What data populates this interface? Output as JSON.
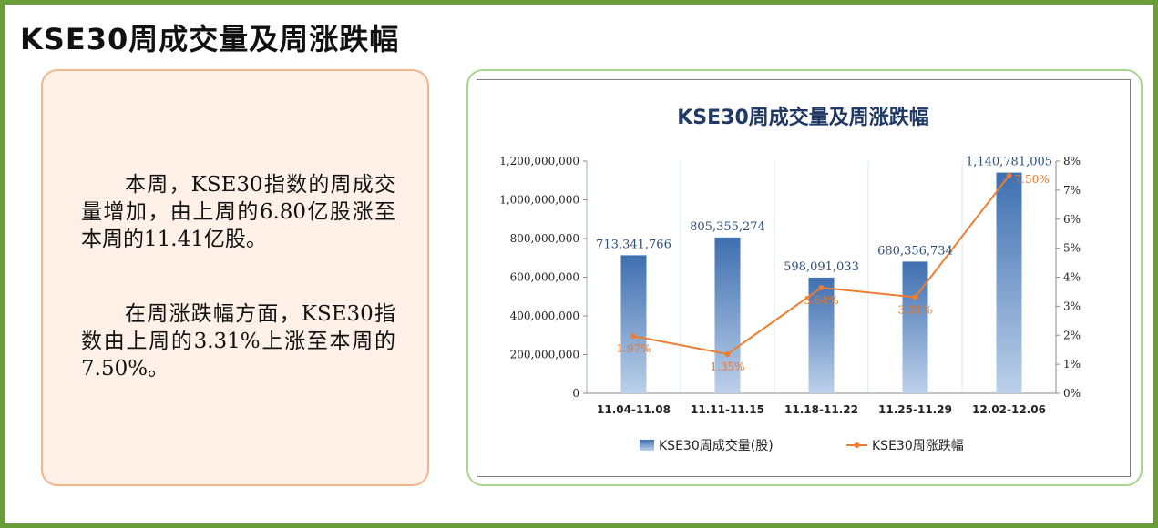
{
  "page_title": "KSE30周成交量及周涨跌幅",
  "text_panel": {
    "paragraph_1": "本周，KSE30指数的周成交量增加，由上周的6.80亿股涨至本周的11.41亿股。",
    "paragraph_2": "在周涨跌幅方面，KSE30指数由上周的3.31%上涨至本周的7.50%。"
  },
  "colors": {
    "frame": "#6a9c3a",
    "text_card_border": "#f2b48a",
    "text_card_bg": "#fff1e8",
    "chart_card_border": "#a8d48c",
    "bar_top": "#3e6fb0",
    "bar_bottom": "#bcd0ea",
    "line": "#ed7d31",
    "chart_title": "#1f3864"
  },
  "chart_data": {
    "type": "bar",
    "title": "KSE30周成交量及周涨跌幅",
    "categories": [
      "11.04-11.08",
      "11.11-11.15",
      "11.18-11.22",
      "11.25-11.29",
      "12.02-12.06"
    ],
    "series": [
      {
        "name": "KSE30周成交量(股)",
        "type": "bar",
        "axis": "left",
        "values": [
          713341766,
          805355274,
          598091033,
          680356734,
          1140781005
        ],
        "labels": [
          "713,341,766",
          "805,355,274",
          "598,091,033",
          "680,356,734",
          "1,140,781,005"
        ]
      },
      {
        "name": "KSE30周涨跌幅",
        "type": "line",
        "axis": "right",
        "values": [
          1.97,
          1.35,
          3.64,
          3.31,
          7.5
        ],
        "labels": [
          "1.97%",
          "1.35%",
          "3.64%",
          "3.31%",
          "7.50%"
        ]
      }
    ],
    "y_left": {
      "min": 0,
      "max": 1200000000,
      "ticks": [
        "0",
        "200,000,000",
        "400,000,000",
        "600,000,000",
        "800,000,000",
        "1,000,000,000",
        "1,200,000,000"
      ]
    },
    "y_right": {
      "min": 0,
      "max": 8,
      "ticks": [
        "0%",
        "1%",
        "2%",
        "3%",
        "4%",
        "5%",
        "6%",
        "7%",
        "8%"
      ]
    },
    "grid": "vertical",
    "legend_position": "bottom"
  }
}
